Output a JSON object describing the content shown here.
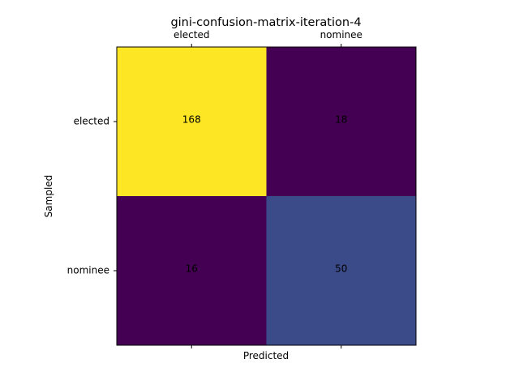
{
  "chart_data": {
    "type": "heatmap",
    "title": "gini-confusion-matrix-iteration-4",
    "xlabel": "Predicted",
    "ylabel": "Sampled",
    "x_categories": [
      "elected",
      "nominee"
    ],
    "y_categories": [
      "elected",
      "nominee"
    ],
    "x_tick_position": "top",
    "values": [
      [
        168,
        18
      ],
      [
        16,
        50
      ]
    ],
    "colormap": "viridis",
    "cell_colors": [
      [
        "#fde725",
        "#440154"
      ],
      [
        "#440154",
        "#3b4b8a"
      ]
    ],
    "grid": false
  }
}
